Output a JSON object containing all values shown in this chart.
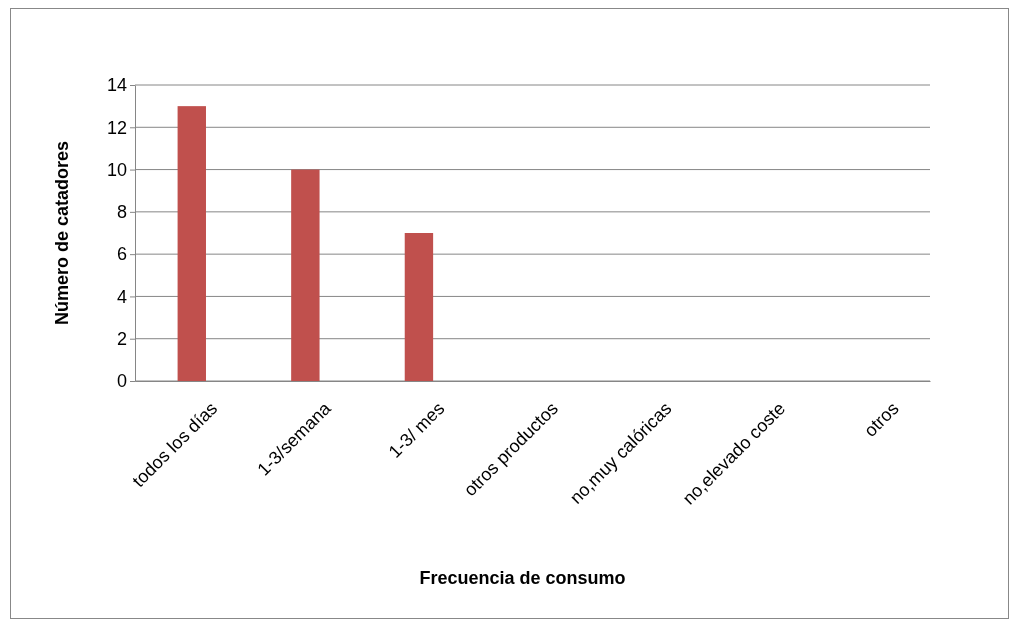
{
  "chart_data": {
    "type": "bar",
    "xlabel": "Frecuencia de consumo",
    "ylabel": "Número de catadores",
    "categories": [
      "todos los días",
      "1-3/semana",
      "1-3/ mes",
      "otros productos",
      "no,muy calóricas",
      "no,elevado coste",
      "otros"
    ],
    "values": [
      13,
      10,
      7,
      0,
      0,
      0,
      0
    ],
    "color": "#c0504d",
    "ylim": [
      0,
      14
    ],
    "yticks": [
      0,
      2,
      4,
      6,
      8,
      10,
      12,
      14
    ],
    "grid": "y"
  }
}
